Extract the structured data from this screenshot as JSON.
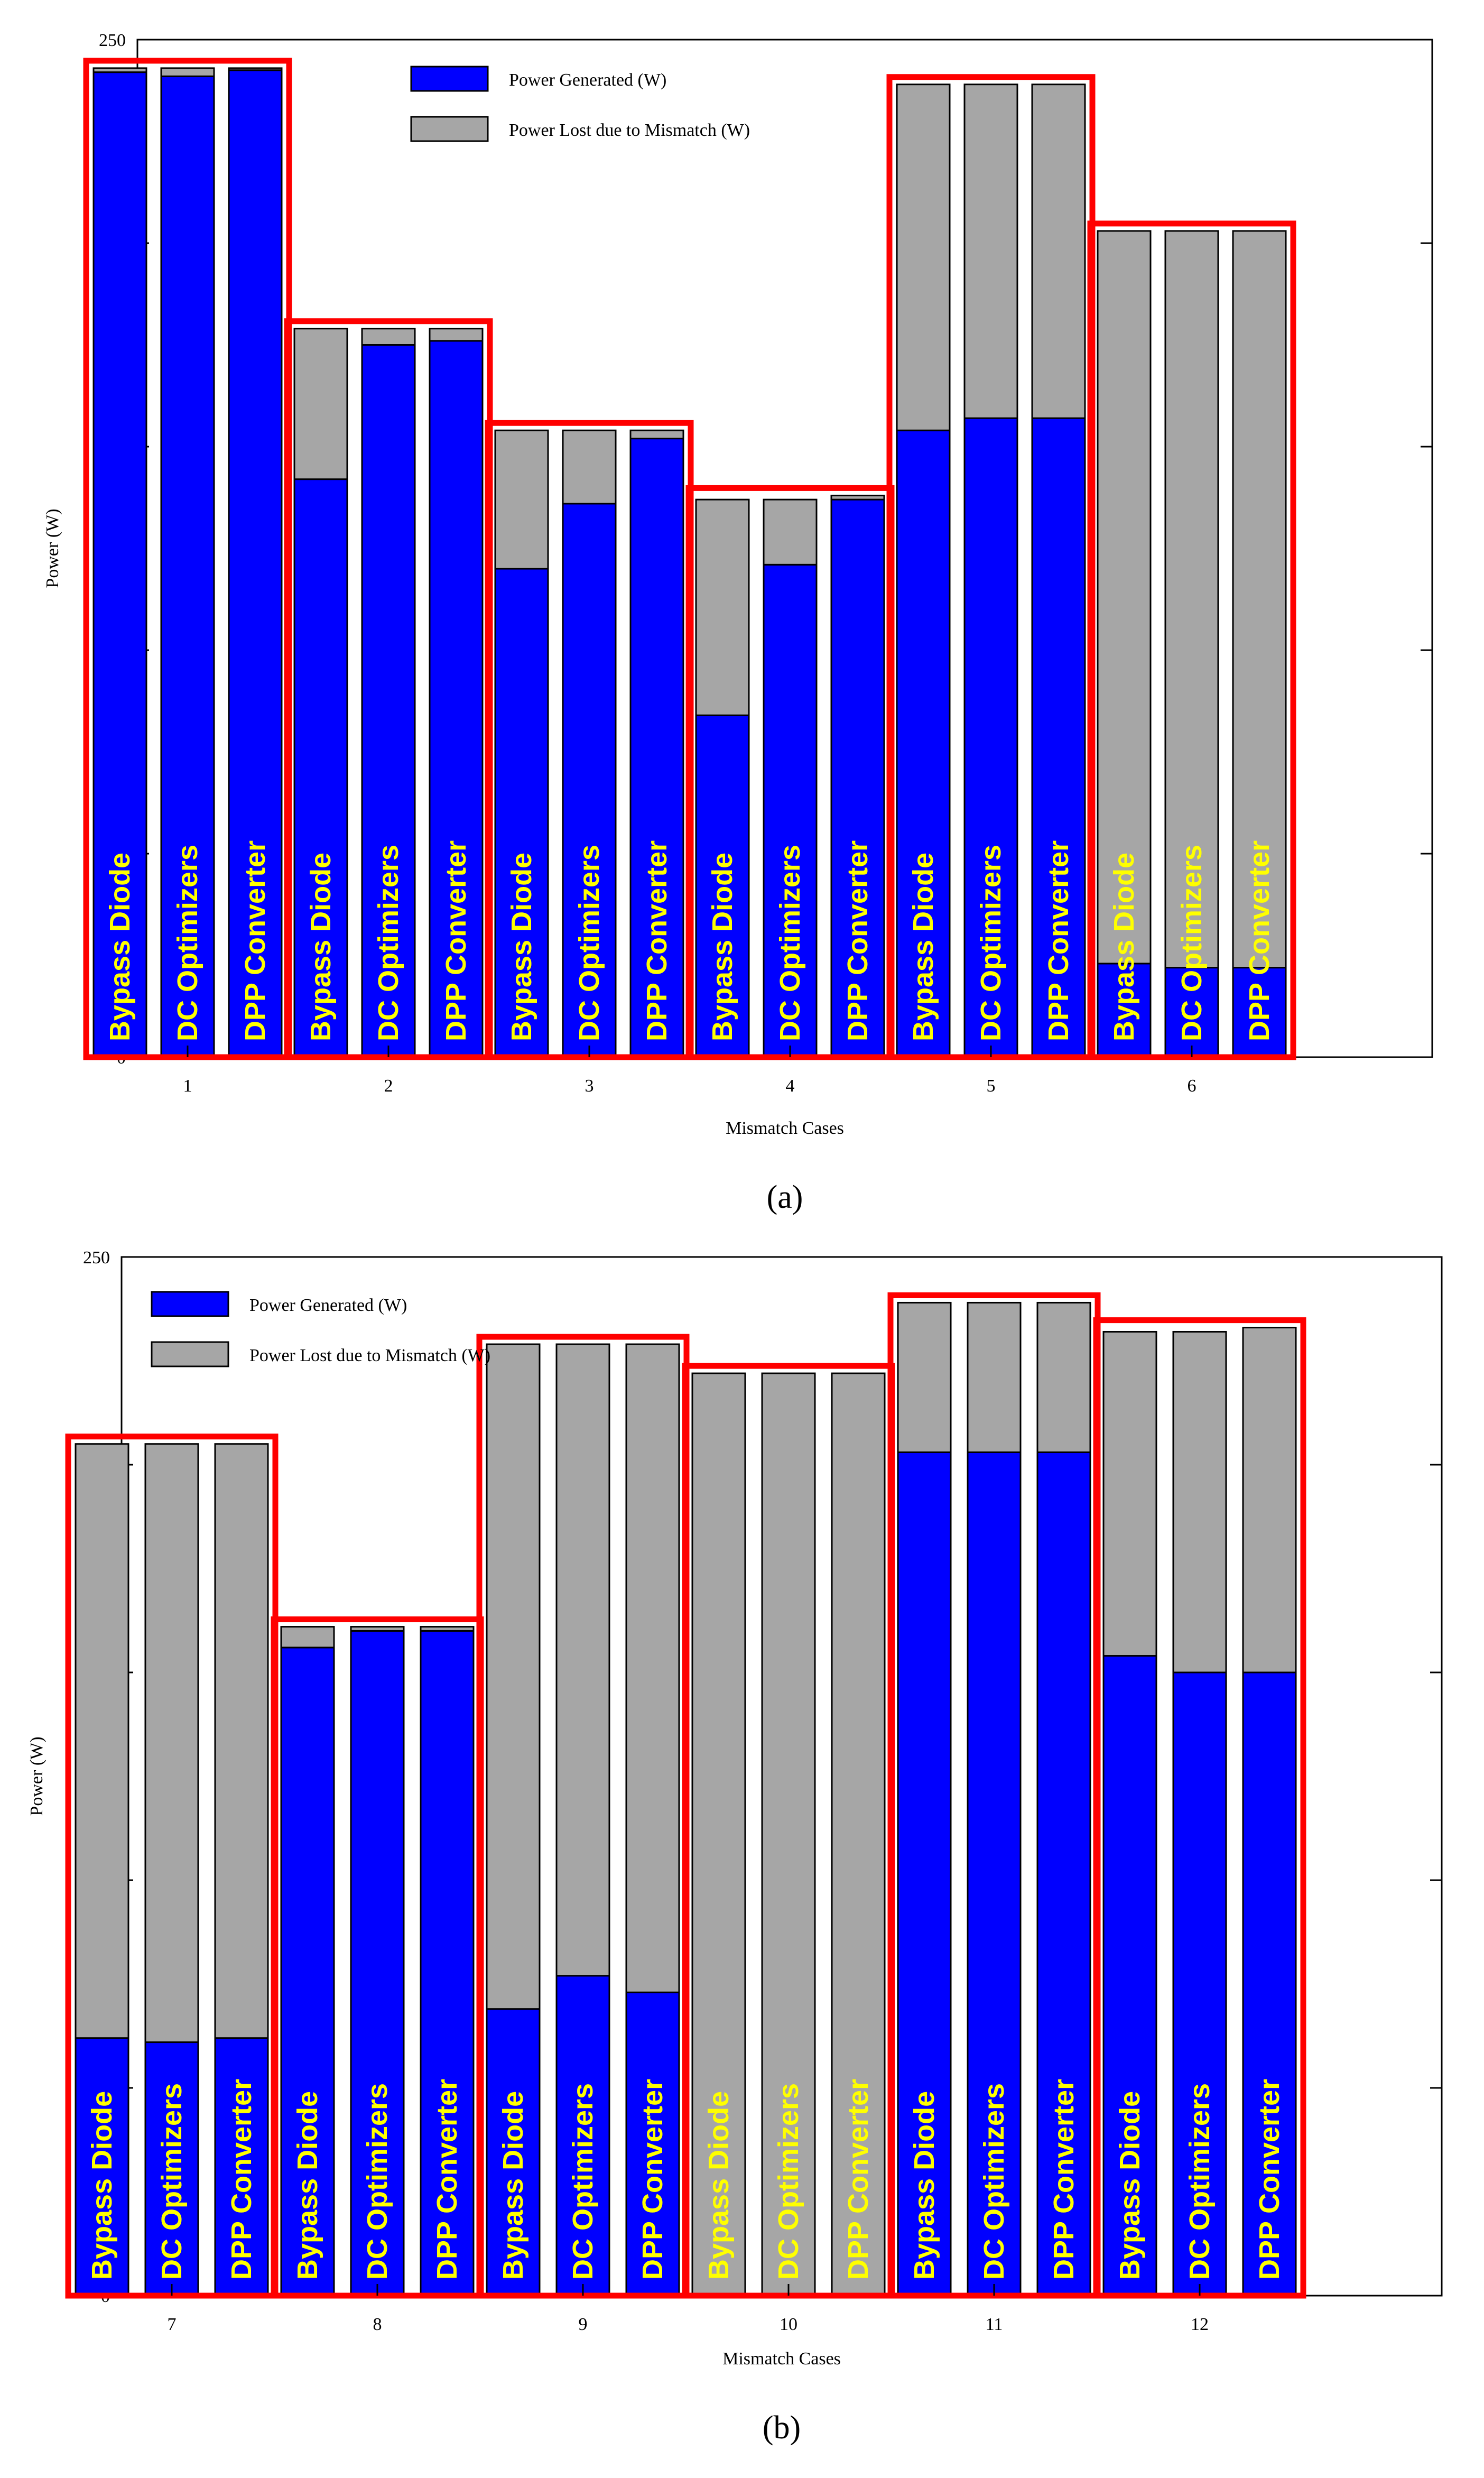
{
  "colors": {
    "generated": "#0000ff",
    "lost": "#a6a6a6",
    "highlight": "#ff0000",
    "bar_label": "#ffff00",
    "axis": "#000000"
  },
  "chart_data": [
    {
      "type": "bar",
      "stacked": true,
      "caption": "(a)",
      "xlabel": "Mismatch Cases",
      "ylabel": "Power (W)",
      "ylim": [
        0,
        250
      ],
      "yticks": [
        0,
        50,
        100,
        150,
        200,
        250
      ],
      "categories": [
        "1",
        "2",
        "3",
        "4",
        "5",
        "6"
      ],
      "bar_labels": [
        "Bypass Diode",
        "DC Optimizers",
        "DPP Converter"
      ],
      "legend": {
        "position": "top-center",
        "entries": [
          "Power Generated (W)",
          "Power Lost due to Mismatch (W)"
        ]
      },
      "series": [
        {
          "name": "Power Generated (W)",
          "values": [
            [
              242,
              241,
              242.5
            ],
            [
              142,
              175,
              176
            ],
            [
              120,
              136,
              152
            ],
            [
              84,
              121,
              137
            ],
            [
              154,
              157,
              157
            ],
            [
              23,
              22,
              22
            ]
          ]
        },
        {
          "name": "Power Lost due to Mismatch (W)",
          "values": [
            [
              1,
              2,
              0.5
            ],
            [
              37,
              4,
              3
            ],
            [
              34,
              18,
              2
            ],
            [
              53,
              16,
              1
            ],
            [
              85,
              82,
              82
            ],
            [
              180,
              181,
              181
            ]
          ]
        }
      ]
    },
    {
      "type": "bar",
      "stacked": true,
      "caption": "(b)",
      "xlabel": "Mismatch Cases",
      "ylabel": "Power (W)",
      "ylim": [
        0,
        250
      ],
      "yticks": [
        0,
        50,
        100,
        150,
        200,
        250
      ],
      "categories": [
        "7",
        "8",
        "9",
        "10",
        "11",
        "12"
      ],
      "bar_labels": [
        "Bypass Diode",
        "DC Optimizers",
        "DPP Converter"
      ],
      "legend": {
        "position": "top-left",
        "entries": [
          "Power Generated (W)",
          "Power Lost due to Mismatch (W)"
        ]
      },
      "series": [
        {
          "name": "Power Generated (W)",
          "values": [
            [
              62,
              61,
              62
            ],
            [
              156,
              160,
              160
            ],
            [
              69,
              77,
              73
            ],
            [
              0,
              0,
              0
            ],
            [
              203,
              203,
              203
            ],
            [
              154,
              150,
              150
            ]
          ]
        },
        {
          "name": "Power Lost due to Mismatch (W)",
          "values": [
            [
              143,
              144,
              143
            ],
            [
              5,
              1,
              1
            ],
            [
              160,
              152,
              156
            ],
            [
              222,
              222,
              222
            ],
            [
              36,
              36,
              36
            ],
            [
              78,
              82,
              83
            ]
          ]
        }
      ]
    }
  ]
}
